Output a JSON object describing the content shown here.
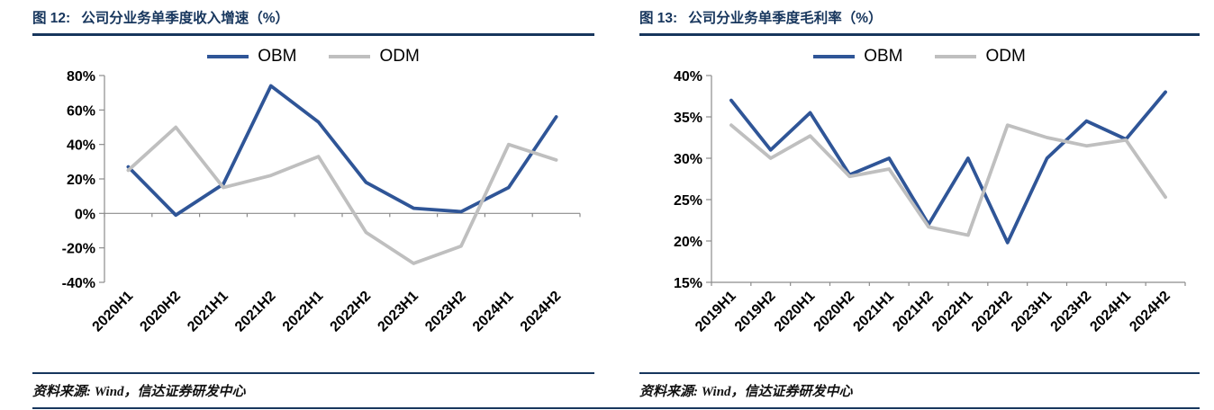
{
  "accent_color": "#17365d",
  "panels": [
    {
      "fig_label": "图 12:",
      "title": "公司分业务单季度收入增速（%）",
      "source": "资料来源: Wind，信达证券研发中心"
    },
    {
      "fig_label": "图 13:",
      "title": "公司分业务单季度毛利率（%）",
      "source": "资料来源: Wind，信达证券研发中心"
    }
  ],
  "chart_data": [
    {
      "type": "line",
      "title": "图 12: 公司分业务单季度收入增速（%）",
      "categories": [
        "2020H1",
        "2020H2",
        "2021H1",
        "2021H2",
        "2022H1",
        "2022H2",
        "2023H1",
        "2023H2",
        "2024H1",
        "2024H2"
      ],
      "series": [
        {
          "name": "OBM",
          "color": "#2f5597",
          "values": [
            27,
            -1,
            17,
            74,
            53,
            18,
            3,
            1,
            15,
            56
          ]
        },
        {
          "name": "ODM",
          "color": "#bfbfbf",
          "values": [
            25,
            50,
            15,
            22,
            33,
            -11,
            -29,
            -19,
            40,
            31
          ]
        }
      ],
      "ylim": [
        -40,
        80
      ],
      "yticks": [
        -40,
        -20,
        0,
        20,
        40,
        60,
        80
      ],
      "ytick_suffix": "%",
      "legend_position": "top",
      "grid": false,
      "x_label_rotation": 45
    },
    {
      "type": "line",
      "title": "图 13: 公司分业务单季度毛利率（%）",
      "categories": [
        "2019H1",
        "2019H2",
        "2020H1",
        "2020H2",
        "2021H1",
        "2021H2",
        "2022H1",
        "2022H2",
        "2023H1",
        "2023H2",
        "2024H1",
        "2024H2"
      ],
      "series": [
        {
          "name": "OBM",
          "color": "#2f5597",
          "values": [
            37,
            31,
            35.5,
            28,
            30,
            22,
            30,
            19.8,
            30,
            34.5,
            32.3,
            38
          ]
        },
        {
          "name": "ODM",
          "color": "#bfbfbf",
          "values": [
            34,
            30,
            32.7,
            27.8,
            28.7,
            21.7,
            20.7,
            34,
            32.5,
            31.5,
            32.2,
            25.3
          ]
        }
      ],
      "ylim": [
        15,
        40
      ],
      "yticks": [
        15,
        20,
        25,
        30,
        35,
        40
      ],
      "ytick_suffix": "%",
      "legend_position": "top",
      "grid": false,
      "x_label_rotation": 45
    }
  ]
}
